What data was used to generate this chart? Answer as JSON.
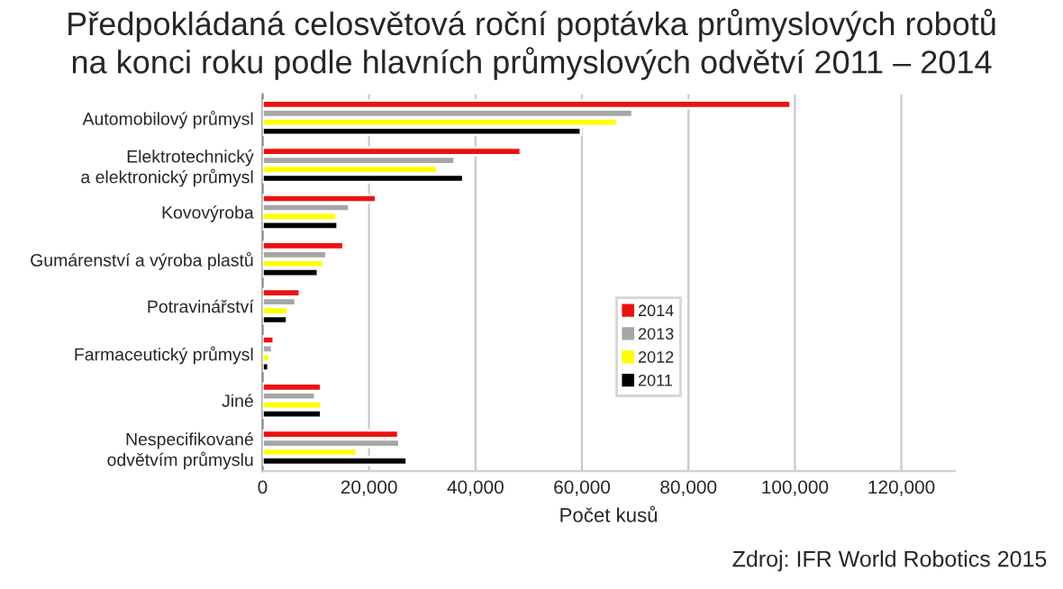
{
  "chart_data": {
    "type": "bar",
    "orientation": "horizontal",
    "title": "Předpokládaná celosvětová roční poptávka průmyslových robotů\nna konci roku podle hlavních průmyslových odvětví 2011 – 2014",
    "xlabel": "Počet kusů",
    "categories": [
      "Automobilový průmysl",
      "Elektrotechnický\na elektronický průmysl",
      "Kovovýroba",
      "Gumárenství a výroba plastů",
      "Potravinářství",
      "Farmaceutický průmysl",
      "Jiné",
      "Nespecifikované\nodvětvím průmyslu"
    ],
    "series": [
      {
        "name": "2014",
        "color": "#ee1111",
        "values": [
          99200,
          48500,
          21300,
          15200,
          7000,
          2100,
          11000,
          25500
        ]
      },
      {
        "name": "2013",
        "color": "#a6a6a6",
        "values": [
          69500,
          36100,
          16300,
          12000,
          6200,
          1800,
          9900,
          25700
        ]
      },
      {
        "name": "2012",
        "color": "#ffff00",
        "values": [
          66600,
          32800,
          13900,
          11400,
          4700,
          1300,
          11000,
          17700
        ]
      },
      {
        "name": "2011",
        "color": "#000000",
        "values": [
          59800,
          37700,
          14100,
          10400,
          4600,
          1100,
          11000,
          27100
        ]
      }
    ],
    "xlim": [
      0,
      130000
    ],
    "xticks": [
      {
        "value": 0,
        "label": "0"
      },
      {
        "value": 20000,
        "label": "20,000"
      },
      {
        "value": 40000,
        "label": "40,000"
      },
      {
        "value": 60000,
        "label": "60,000"
      },
      {
        "value": 80000,
        "label": "80,000"
      },
      {
        "value": 100000,
        "label": "100,000"
      },
      {
        "value": 120000,
        "label": "120,000"
      }
    ],
    "grid": "x",
    "legend": "right",
    "annotations": [
      "Zdroj: IFR World Robotics 2015"
    ]
  }
}
